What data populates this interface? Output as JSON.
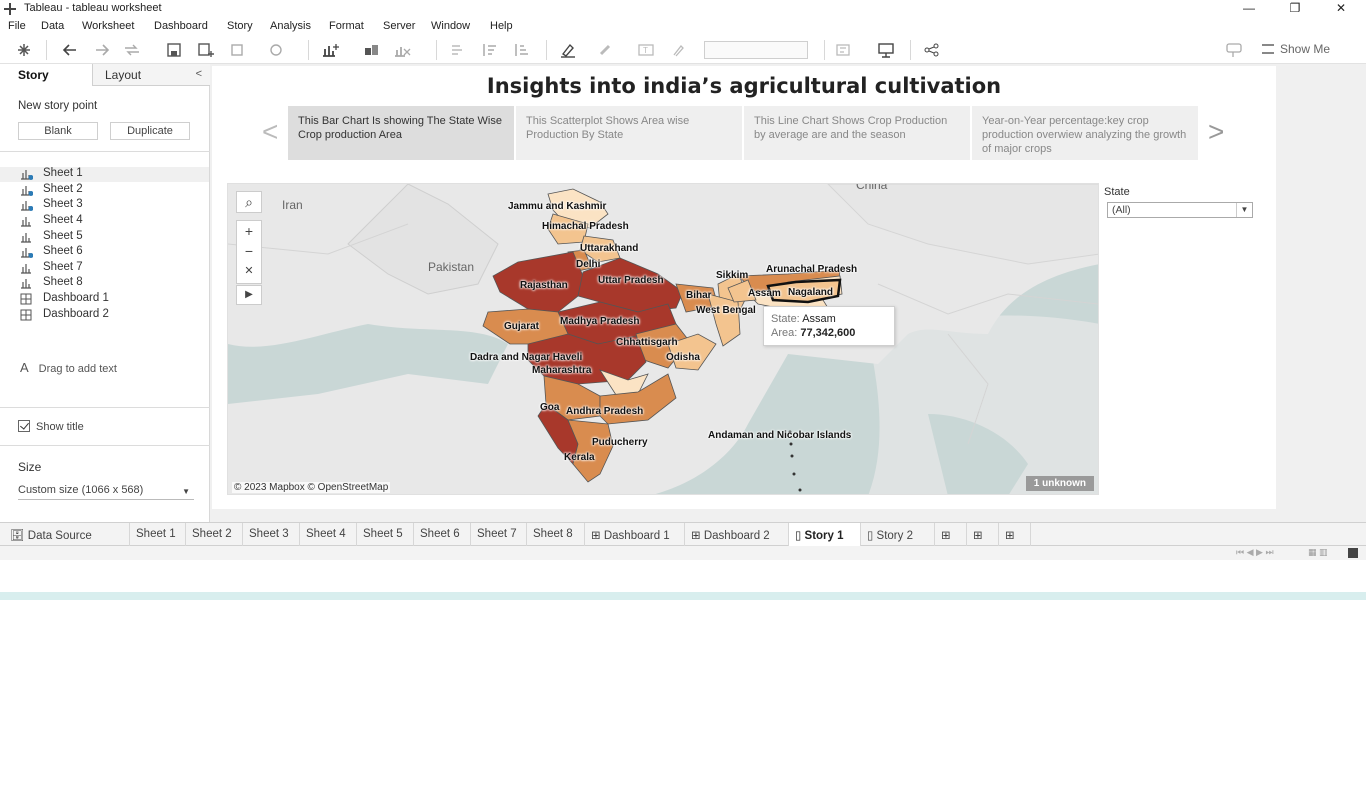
{
  "window": {
    "title": "Tableau - tableau worksheet",
    "minimize": "—",
    "maximize": "❐",
    "close": "✕"
  },
  "menu": [
    "File",
    "Data",
    "Worksheet",
    "Dashboard",
    "Story",
    "Analysis",
    "Format",
    "Server",
    "Window",
    "Help"
  ],
  "toolbar": {
    "show_me": "Show Me"
  },
  "left_pane": {
    "tab_story": "Story",
    "tab_layout": "Layout",
    "new_story_point": "New story point",
    "blank": "Blank",
    "duplicate": "Duplicate",
    "sheets": [
      {
        "label": "Sheet 1",
        "type": "sheet",
        "used": true
      },
      {
        "label": "Sheet 2",
        "type": "sheet",
        "used": true
      },
      {
        "label": "Sheet 3",
        "type": "sheet",
        "used": true
      },
      {
        "label": "Sheet 4",
        "type": "sheet",
        "used": false
      },
      {
        "label": "Sheet 5",
        "type": "sheet",
        "used": false
      },
      {
        "label": "Sheet 6",
        "type": "sheet",
        "used": true
      },
      {
        "label": "Sheet 7",
        "type": "sheet",
        "used": false
      },
      {
        "label": "Sheet 8",
        "type": "sheet",
        "used": false
      },
      {
        "label": "Dashboard 1",
        "type": "dashboard",
        "used": false
      },
      {
        "label": "Dashboard 2",
        "type": "dashboard",
        "used": false
      }
    ],
    "drag_text": "Drag to add text",
    "show_title": "Show title",
    "size_label": "Size",
    "size_value": "Custom size (1066 x 568)"
  },
  "story": {
    "title": "Insights into india’s agricultural cultivation",
    "captions": [
      "This Bar Chart Is showing The State Wise Crop production Area",
      "This Scatterplot Shows Area wise Production By State",
      "This Line Chart Shows Crop Production by average are and the season",
      "Year-on-Year percentage:key crop production overwiew analyzing the growth of major crops"
    ]
  },
  "map": {
    "countries": [
      "Iran",
      "Pakistan",
      "China"
    ],
    "states": [
      "Jammu and Kashmir",
      "Himachal Pradesh",
      "Uttarakhand",
      "Delhi",
      "Rajasthan",
      "Uttar Pradesh",
      "Bihar",
      "Sikkim",
      "Arunachal Pradesh",
      "Assam",
      "Nagaland",
      "West Bengal",
      "Gujarat",
      "Madhya Pradesh",
      "Chhattisgarh",
      "Odisha",
      "Dadra and Nagar Haveli",
      "Maharashtra",
      "Goa",
      "Andhra Pradesh",
      "Puducherry",
      "Kerala",
      "Andaman and Nicobar Islands"
    ],
    "attribution": "© 2023 Mapbox © OpenStreetMap",
    "unknown_badge": "1 unknown",
    "tooltip": {
      "state_key": "State:",
      "state_val": "Assam",
      "area_key": "Area:",
      "area_val": "77,342,600"
    }
  },
  "filter": {
    "title": "State",
    "value": "(All)"
  },
  "bottom_tabs": [
    "Data Source",
    "Sheet 1",
    "Sheet 2",
    "Sheet 3",
    "Sheet 4",
    "Sheet 5",
    "Sheet 6",
    "Sheet 7",
    "Sheet 8",
    "Dashboard 1",
    "Dashboard 2",
    "Story 1",
    "Story 2"
  ],
  "colors": {
    "dark": "#a8382b",
    "mid": "#d98c4f",
    "light": "#f3c48f",
    "pale": "#fbe3c4",
    "water": "#c9d7d6",
    "land": "#e8e8e8"
  }
}
